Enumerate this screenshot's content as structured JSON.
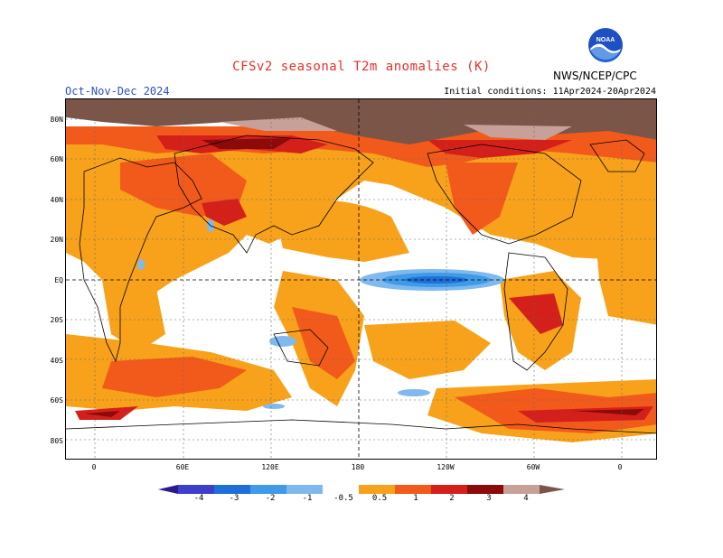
{
  "title": "CFSv2 seasonal T2m anomalies (K)",
  "org": "NWS/NCEP/CPC",
  "logo_text": "NOAA",
  "season": "Oct-Nov-Dec 2024",
  "initial_conditions": "Initial conditions: 11Apr2024-20Apr2024",
  "lat_labels": [
    "80N",
    "60N",
    "40N",
    "20N",
    "EQ",
    "20S",
    "40S",
    "60S",
    "80S"
  ],
  "lon_labels": [
    "0",
    "60E",
    "120E",
    "180",
    "120W",
    "60W",
    "0"
  ],
  "colorbar": {
    "labels": [
      "-4",
      "-3",
      "-2",
      "-1",
      "-0.5",
      "0.5",
      "1",
      "2",
      "3",
      "4"
    ],
    "colors": [
      "#2a1a8c",
      "#3d3fcc",
      "#1e6fd8",
      "#3f9be8",
      "#7fb9ee",
      "#ffffff",
      "#f7a21a",
      "#f26a1b",
      "#e8301c",
      "#b81212",
      "#8b0a0a",
      "#c8a09a",
      "#7a5548"
    ]
  },
  "colors": {
    "very_warm": "#7a5548",
    "warm_pink": "#c8a09a",
    "dark_red": "#8b0a0a",
    "red": "#d4201a",
    "orange_red": "#f25a1b",
    "orange": "#f7a21a",
    "light_blue": "#7fb9ee",
    "blue": "#3f9be8",
    "dark_blue": "#1e6fd8"
  }
}
